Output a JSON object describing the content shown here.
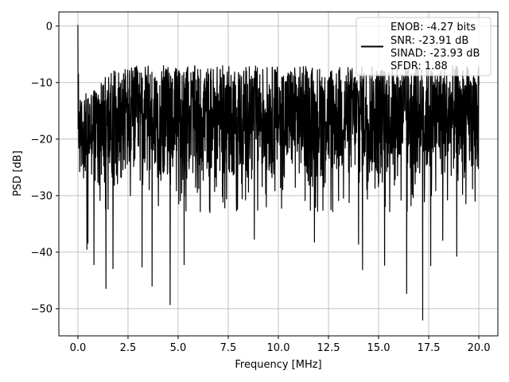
{
  "chart_data": {
    "type": "line",
    "title": "",
    "xlabel": "Frequency [MHz]",
    "ylabel": "PSD [dB]",
    "xlim": [
      -0.95,
      20.95
    ],
    "ylim": [
      -54.8,
      2.5
    ],
    "xticks": [
      0.0,
      2.5,
      5.0,
      7.5,
      10.0,
      12.5,
      15.0,
      17.5,
      20.0
    ],
    "xtick_labels": [
      "0.0",
      "2.5",
      "5.0",
      "7.5",
      "10.0",
      "12.5",
      "15.0",
      "17.5",
      "20.0"
    ],
    "yticks": [
      0,
      -10,
      -20,
      -30,
      -40,
      -50
    ],
    "ytick_labels": [
      "0",
      "−10",
      "−20",
      "−30",
      "−40",
      "−50"
    ],
    "grid": true,
    "legend_position": "top-right",
    "line_color": "#000000",
    "series": [
      {
        "name": "ENOB: -4.27 bits\nSNR: -23.91 dB\nSINAD: -23.93 dB\nSFDR: 1.88",
        "legend_lines": [
          "ENOB: -4.27 bits",
          "SNR: -23.91 dB",
          "SINAD: -23.93 dB",
          "SFDR: 1.88"
        ],
        "x_start": 0.0,
        "x_end": 20.0,
        "points_count": 2048,
        "typical_floor_db": [
          -7,
          -27
        ],
        "notable_points": [
          {
            "x": 0.0,
            "y": 0.2
          },
          {
            "x": 0.03,
            "y": -8.5
          },
          {
            "x": 0.08,
            "y": -16.5
          },
          {
            "x": 0.45,
            "y": -39.5
          },
          {
            "x": 0.5,
            "y": -38.4
          },
          {
            "x": 0.8,
            "y": -42.2
          },
          {
            "x": 1.4,
            "y": -46.4
          },
          {
            "x": 1.75,
            "y": -42.9
          },
          {
            "x": 3.2,
            "y": -42.6
          },
          {
            "x": 3.7,
            "y": -46.0
          },
          {
            "x": 4.6,
            "y": -49.3
          },
          {
            "x": 5.3,
            "y": -42.2
          },
          {
            "x": 8.8,
            "y": -37.7
          },
          {
            "x": 11.8,
            "y": -38.2
          },
          {
            "x": 14.0,
            "y": -38.6
          },
          {
            "x": 14.2,
            "y": -43.1
          },
          {
            "x": 15.3,
            "y": -42.3
          },
          {
            "x": 16.4,
            "y": -47.3
          },
          {
            "x": 17.2,
            "y": -52.0
          },
          {
            "x": 17.6,
            "y": -42.4
          },
          {
            "x": 18.2,
            "y": -37.9
          },
          {
            "x": 18.9,
            "y": -40.7
          }
        ]
      }
    ]
  }
}
